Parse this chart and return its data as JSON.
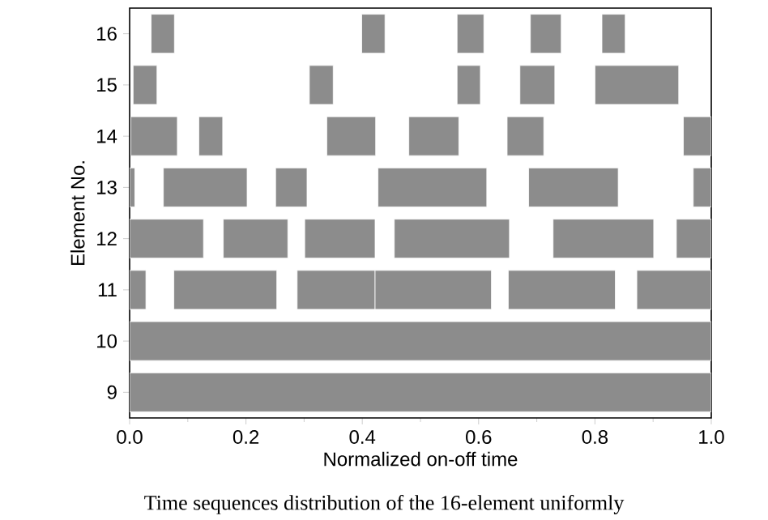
{
  "chart_data": {
    "type": "bar",
    "orientation": "horizontal",
    "xlabel": "Normalized on-off time",
    "ylabel": "Element No.",
    "categories": [
      "16",
      "15",
      "14",
      "13",
      "12",
      "11",
      "10",
      "9"
    ],
    "series": [
      {
        "color": "#8c8c8c",
        "base": [
          0.037,
          0.006,
          0.002,
          0.0,
          0.0,
          0.0,
          0.0,
          0.0
        ],
        "values": [
          0.04,
          0.041,
          0.08,
          0.009,
          0.127,
          0.028,
          1.0,
          1.0
        ]
      },
      {
        "color": "#8c8c8c",
        "base": [
          0.399,
          0.309,
          0.119,
          0.058,
          0.161,
          0.076,
          null,
          null
        ],
        "values": [
          0.04,
          0.041,
          0.041,
          0.144,
          0.111,
          0.177,
          null,
          null
        ]
      },
      {
        "color": "#8c8c8c",
        "base": [
          0.563,
          0.563,
          0.339,
          0.251,
          0.301,
          0.288,
          null,
          null
        ],
        "values": [
          0.046,
          0.04,
          0.084,
          0.054,
          0.121,
          0.134,
          null,
          null
        ]
      },
      {
        "color": "#8c8c8c",
        "base": [
          0.689,
          0.671,
          0.48,
          0.427,
          0.455,
          0.422,
          null,
          null
        ],
        "values": [
          0.053,
          0.06,
          0.086,
          0.187,
          0.198,
          0.2,
          null,
          null
        ]
      },
      {
        "color": "#8c8c8c",
        "base": [
          0.812,
          0.8,
          0.649,
          0.686,
          0.728,
          0.651,
          null,
          null
        ],
        "values": [
          0.04,
          0.144,
          0.063,
          0.154,
          0.173,
          0.184,
          null,
          null
        ]
      },
      {
        "color": "#8c8c8c",
        "base": [
          null,
          null,
          0.952,
          0.969,
          0.94,
          0.872,
          null,
          null
        ],
        "values": [
          null,
          null,
          0.048,
          0.031,
          0.06,
          0.128,
          null,
          null
        ]
      }
    ],
    "xlim": [
      0,
      1
    ],
    "xticks": [
      {
        "value": 0,
        "label": "0.0"
      },
      {
        "value": 0.2,
        "label": "0.2"
      },
      {
        "value": 0.4,
        "label": "0.4"
      },
      {
        "value": 0.6,
        "label": "0.6"
      },
      {
        "value": 0.8,
        "label": "0.8"
      },
      {
        "value": 1,
        "label": "1.0"
      }
    ],
    "annotations": [
      "Time sequences distribution of the 16-element uniformly"
    ]
  }
}
